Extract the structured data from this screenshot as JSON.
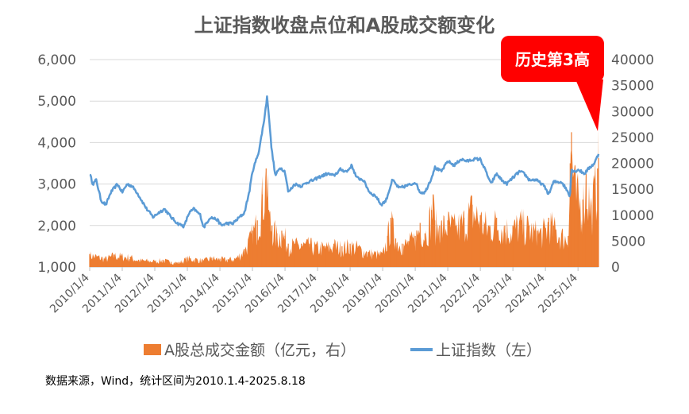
{
  "chart_data": {
    "type": "area",
    "title": "上证指数收盘点位和A股成交额变化",
    "note": "数据来源，Wind，统计区间为2010.1.4-2025.8.18",
    "callout": "历史第3高",
    "categories": [
      "2010/1/4",
      "2011/1/4",
      "2012/1/4",
      "2013/1/4",
      "2014/1/4",
      "2015/1/4",
      "2016/1/4",
      "2017/1/4",
      "2018/1/4",
      "2019/1/4",
      "2020/1/4",
      "2021/1/4",
      "2022/1/4",
      "2023/1/4",
      "2024/1/4",
      "2025/1/4"
    ],
    "y_left": {
      "min": 1000,
      "max": 6000,
      "ticks": [
        "1,000",
        "2,000",
        "3,000",
        "4,000",
        "5,000",
        "6,000"
      ]
    },
    "y_right": {
      "min": 0,
      "max": 40000,
      "ticks": [
        "0",
        "5000",
        "10000",
        "15000",
        "20000",
        "25000",
        "30000",
        "35000",
        "40000"
      ]
    },
    "grid": true,
    "legend_position": "bottom",
    "colors": {
      "volume": "#ED7D31",
      "index": "#5B9BD5",
      "callout": "#FF0000",
      "grid": "#D9D9D9"
    },
    "series": [
      {
        "name": "A股总成交金额（亿元，右）",
        "axis": "right",
        "style": "area",
        "x": [
          2010.0,
          2010.25,
          2010.5,
          2010.75,
          2011.0,
          2011.25,
          2011.5,
          2011.75,
          2012.0,
          2012.25,
          2012.5,
          2012.75,
          2013.0,
          2013.25,
          2013.5,
          2013.75,
          2014.0,
          2014.25,
          2014.5,
          2014.75,
          2014.92,
          2015.0,
          2015.15,
          2015.3,
          2015.42,
          2015.5,
          2015.6,
          2015.75,
          2015.9,
          2016.0,
          2016.1,
          2016.3,
          2016.5,
          2016.75,
          2017.0,
          2017.25,
          2017.5,
          2017.75,
          2018.0,
          2018.25,
          2018.5,
          2018.75,
          2019.0,
          2019.15,
          2019.25,
          2019.4,
          2019.6,
          2019.8,
          2020.0,
          2020.15,
          2020.3,
          2020.5,
          2020.55,
          2020.6,
          2020.75,
          2021.0,
          2021.25,
          2021.5,
          2021.75,
          2022.0,
          2022.25,
          2022.5,
          2022.75,
          2023.0,
          2023.25,
          2023.5,
          2023.75,
          2024.0,
          2024.1,
          2024.25,
          2024.5,
          2024.7,
          2024.76,
          2024.8,
          2024.9,
          2025.0,
          2025.15,
          2025.25,
          2025.4,
          2025.5,
          2025.6,
          2025.63
        ],
        "values": [
          2500,
          2100,
          1700,
          2400,
          2200,
          2000,
          1400,
          1300,
          1200,
          1400,
          1000,
          900,
          1800,
          1600,
          1300,
          1800,
          1600,
          1500,
          1800,
          3500,
          5500,
          7000,
          9000,
          14000,
          19000,
          11000,
          8000,
          6500,
          7000,
          6000,
          4500,
          4500,
          4500,
          4500,
          4000,
          4000,
          4500,
          4000,
          4500,
          4000,
          3000,
          2800,
          2500,
          6000,
          9500,
          5500,
          4500,
          5000,
          6000,
          8500,
          6500,
          11000,
          14000,
          9000,
          8000,
          9000,
          8000,
          9500,
          12000,
          10000,
          8000,
          9500,
          8000,
          8000,
          9000,
          8000,
          7000,
          7500,
          9500,
          8000,
          6500,
          6000,
          20000,
          26000,
          16000,
          14000,
          13000,
          18000,
          12000,
          15000,
          19000,
          21000
        ]
      },
      {
        "name": "上证指数（左）",
        "axis": "left",
        "style": "line",
        "x": [
          2010.0,
          2010.1,
          2010.2,
          2010.35,
          2010.5,
          2010.65,
          2010.85,
          2011.0,
          2011.15,
          2011.3,
          2011.45,
          2011.6,
          2011.75,
          2011.95,
          2012.1,
          2012.3,
          2012.5,
          2012.7,
          2012.9,
          2013.05,
          2013.2,
          2013.4,
          2013.5,
          2013.7,
          2013.9,
          2014.05,
          2014.2,
          2014.4,
          2014.6,
          2014.75,
          2014.9,
          2015.0,
          2015.2,
          2015.35,
          2015.45,
          2015.5,
          2015.58,
          2015.7,
          2015.85,
          2016.0,
          2016.1,
          2016.3,
          2016.5,
          2016.7,
          2016.9,
          2017.0,
          2017.3,
          2017.5,
          2017.7,
          2017.9,
          2018.05,
          2018.2,
          2018.4,
          2018.6,
          2018.8,
          2018.95,
          2019.1,
          2019.3,
          2019.5,
          2019.7,
          2019.9,
          2020.0,
          2020.15,
          2020.3,
          2020.5,
          2020.6,
          2020.8,
          2021.0,
          2021.2,
          2021.4,
          2021.6,
          2021.8,
          2022.0,
          2022.2,
          2022.32,
          2022.5,
          2022.65,
          2022.8,
          2023.0,
          2023.2,
          2023.35,
          2023.5,
          2023.7,
          2023.9,
          2024.0,
          2024.1,
          2024.25,
          2024.5,
          2024.7,
          2024.75,
          2024.8,
          2024.9,
          2025.0,
          2025.2,
          2025.3,
          2025.5,
          2025.63
        ],
        "values": [
          3250,
          3000,
          3100,
          2600,
          2500,
          2800,
          3000,
          2800,
          3000,
          2950,
          2800,
          2600,
          2400,
          2200,
          2300,
          2400,
          2200,
          2050,
          1980,
          2300,
          2400,
          2250,
          1950,
          2200,
          2150,
          2000,
          2050,
          2050,
          2200,
          2300,
          2800,
          3300,
          3800,
          4500,
          5100,
          4700,
          3900,
          3200,
          3400,
          3300,
          2800,
          3000,
          2950,
          3050,
          3100,
          3150,
          3250,
          3200,
          3350,
          3300,
          3450,
          3150,
          3100,
          2800,
          2700,
          2500,
          2600,
          3100,
          2900,
          2950,
          3000,
          3050,
          2800,
          2800,
          3150,
          3400,
          3300,
          3550,
          3450,
          3600,
          3550,
          3600,
          3600,
          3250,
          3000,
          3250,
          3100,
          3000,
          3150,
          3300,
          3250,
          3100,
          3100,
          3000,
          2900,
          2750,
          3050,
          3050,
          2800,
          2700,
          3350,
          3300,
          3350,
          3250,
          3350,
          3500,
          3720
        ]
      }
    ]
  }
}
